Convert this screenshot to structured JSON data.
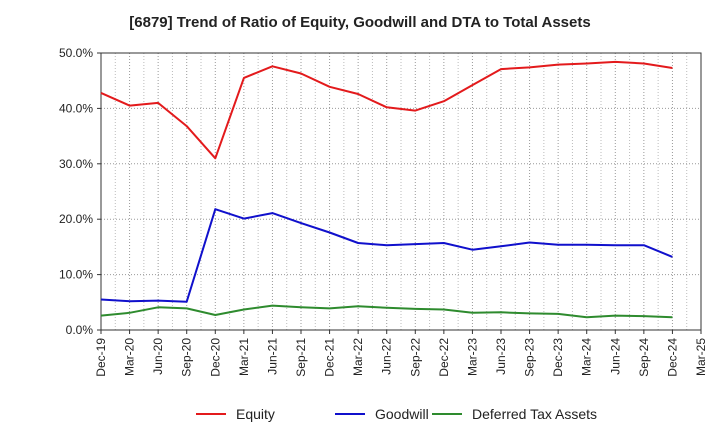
{
  "chart_data": {
    "type": "line",
    "title": "[6879]  Trend of Ratio of Equity, Goodwill and DTA to Total Assets",
    "x_labels": [
      "Dec-19",
      "Mar-20",
      "Jun-20",
      "Sep-20",
      "Dec-20",
      "Mar-21",
      "Jun-21",
      "Sep-21",
      "Dec-21",
      "Mar-22",
      "Jun-22",
      "Sep-22",
      "Dec-22",
      "Mar-23",
      "Jun-23",
      "Sep-23",
      "Dec-23",
      "Mar-24",
      "Jun-24",
      "Sep-24",
      "Dec-24",
      "Mar-25"
    ],
    "y_ticks": [
      "0.0%",
      "10.0%",
      "20.0%",
      "30.0%",
      "40.0%",
      "50.0%"
    ],
    "ylim": [
      0,
      50
    ],
    "grid": true,
    "legend_position": "bottom",
    "series": [
      {
        "name": "Equity",
        "color": "#e31a1c",
        "values": [
          42.8,
          40.5,
          41.0,
          36.8,
          31.0,
          45.5,
          47.6,
          46.3,
          43.9,
          42.6,
          40.2,
          39.6,
          41.3,
          44.2,
          47.1,
          47.4,
          47.9,
          48.1,
          48.4,
          48.1,
          47.3,
          null
        ]
      },
      {
        "name": "Goodwill",
        "color": "#1010cc",
        "values": [
          5.5,
          5.2,
          5.3,
          5.1,
          21.8,
          20.1,
          21.1,
          19.3,
          17.6,
          15.7,
          15.3,
          15.5,
          15.7,
          14.5,
          15.1,
          15.8,
          15.4,
          15.4,
          15.3,
          15.3,
          13.2,
          null
        ]
      },
      {
        "name": "Deferred Tax Assets",
        "color": "#2e8b2e",
        "values": [
          2.6,
          3.1,
          4.1,
          3.9,
          2.7,
          3.7,
          4.4,
          4.1,
          3.9,
          4.3,
          4.0,
          3.8,
          3.7,
          3.1,
          3.2,
          3.0,
          2.9,
          2.3,
          2.6,
          2.5,
          2.3,
          null
        ]
      }
    ]
  }
}
